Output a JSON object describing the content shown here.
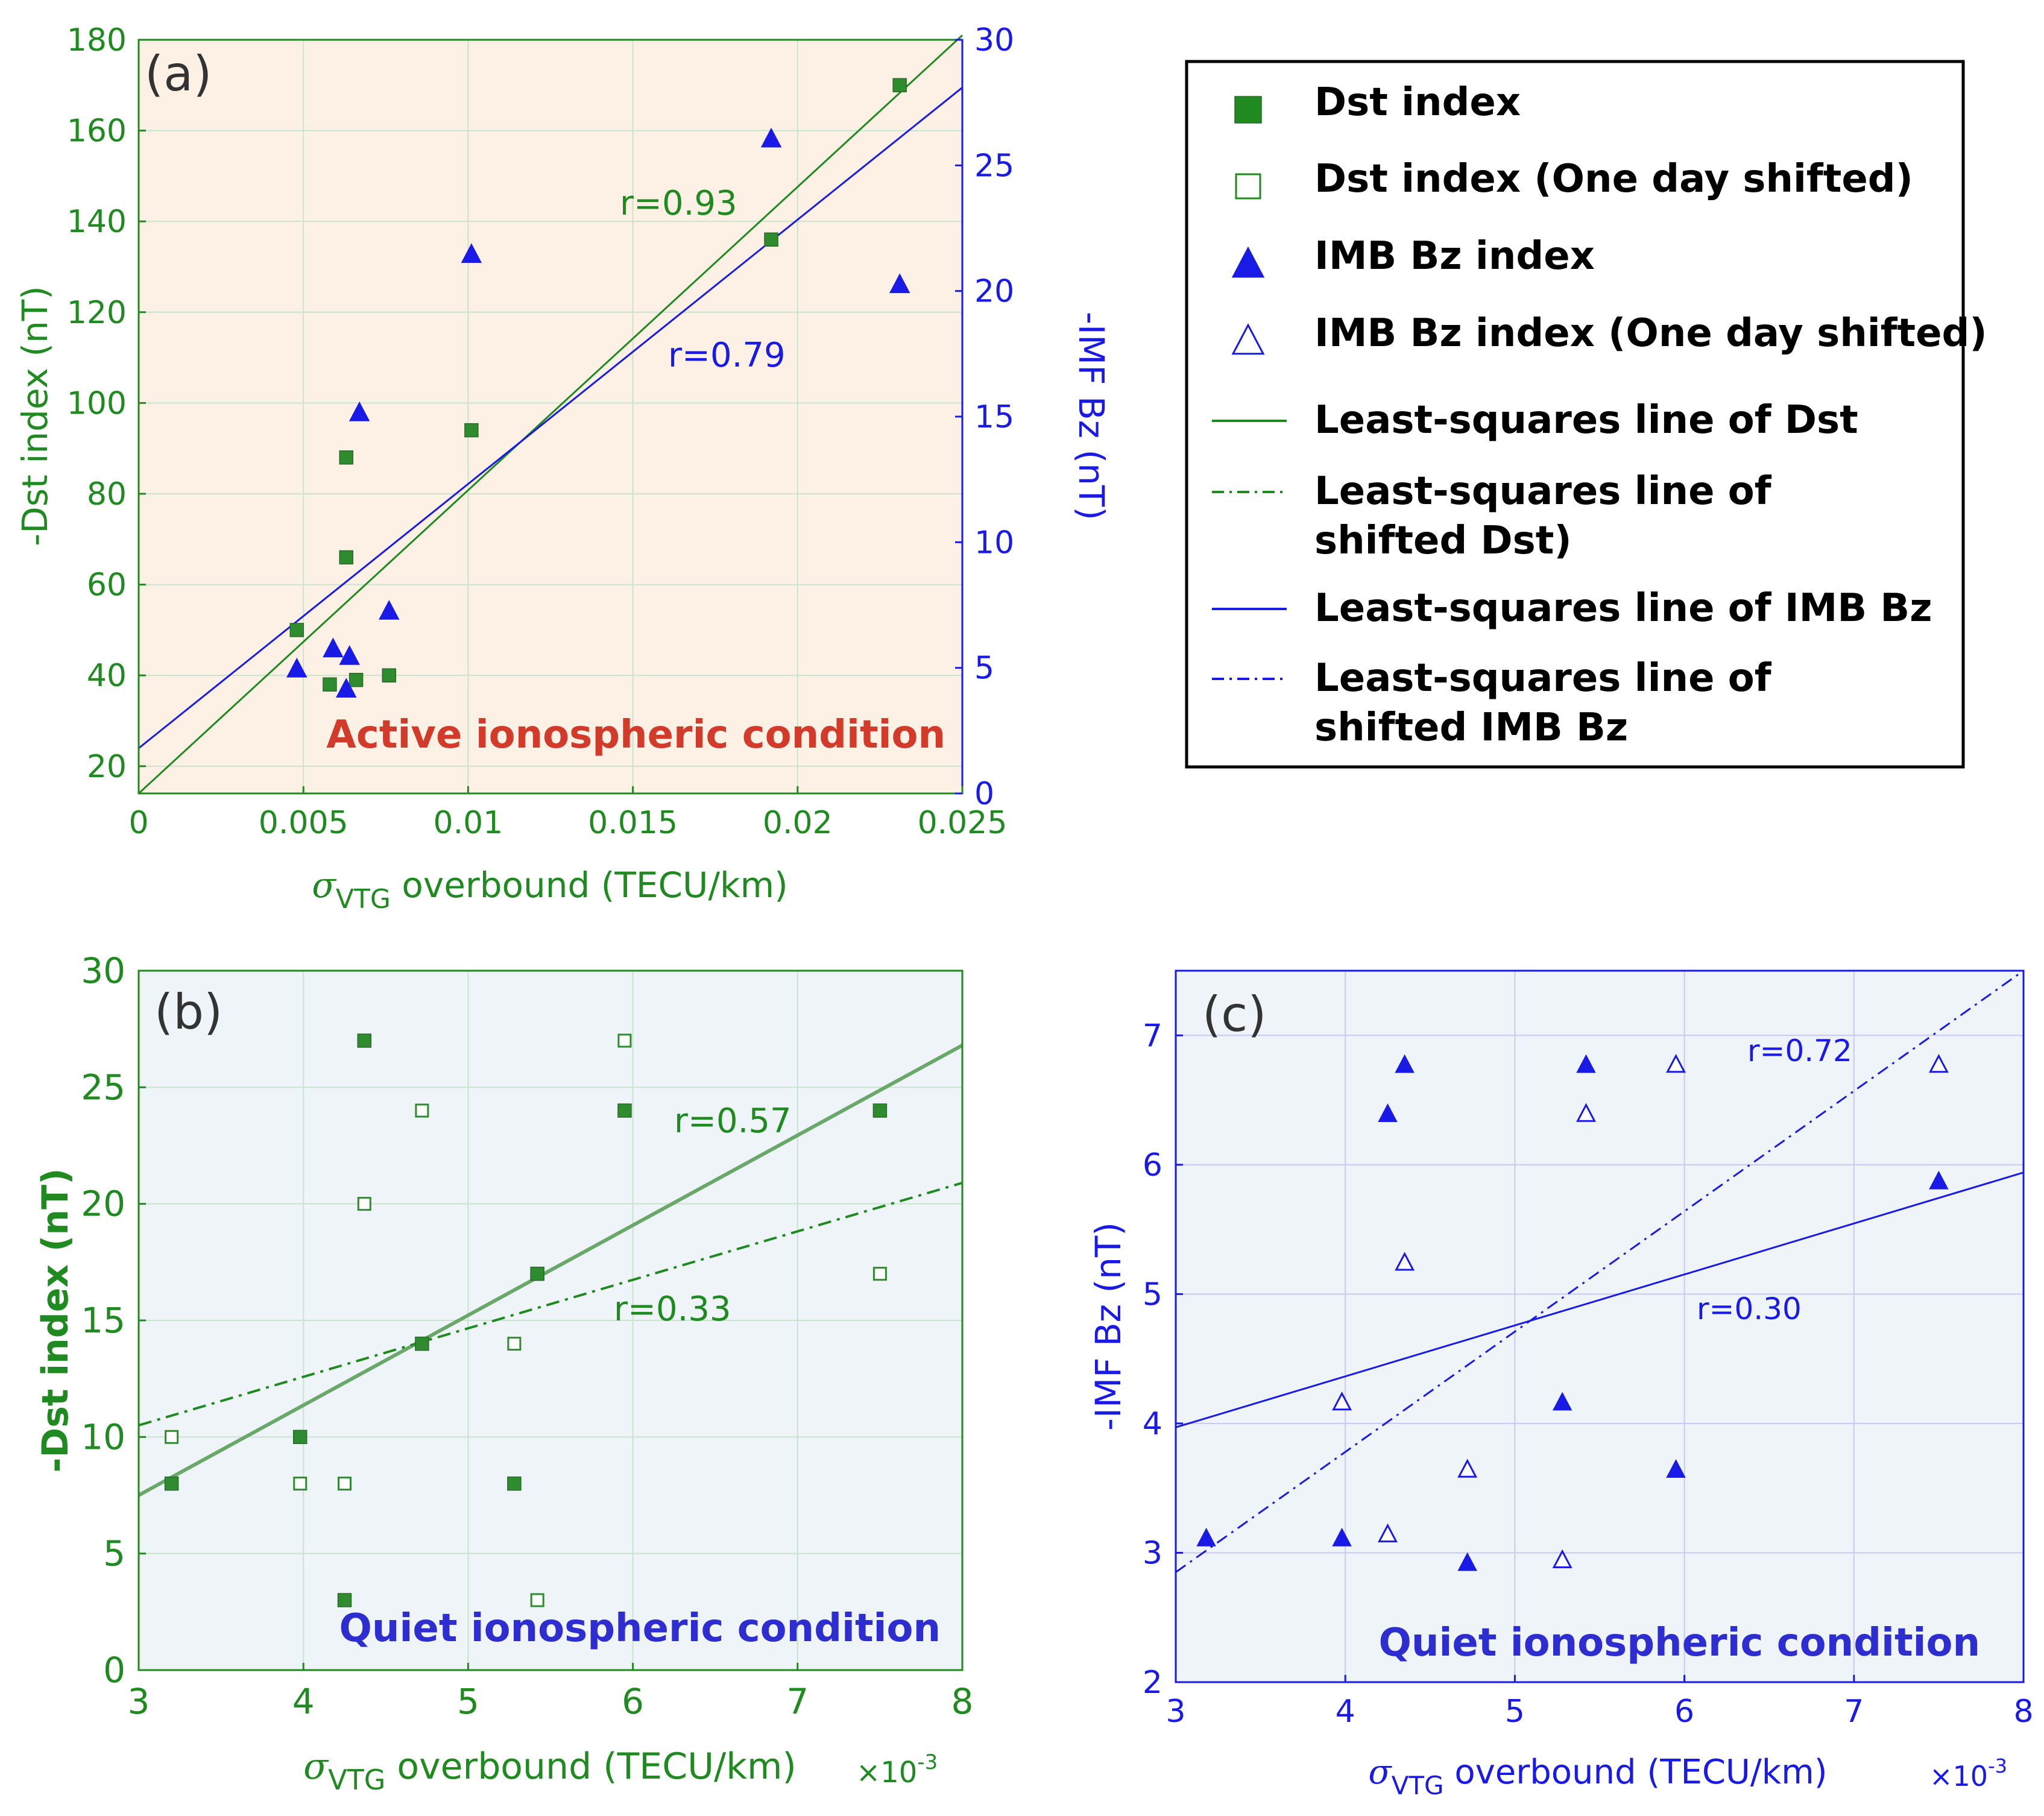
{
  "colors": {
    "green": "#1f8a1f",
    "green_marker": "#2e8b2e",
    "blue": "#1a1ae6",
    "red_title": "#d23a2a",
    "panel_a_bg": "#fdf1e6",
    "panel_bc_bg": "#eef4f8",
    "grid": "#c9e3cf",
    "grid_c": "#c8c8f2",
    "label_gray": "#333333"
  },
  "legend": {
    "items": [
      {
        "symbol": "filled-square",
        "label": "Dst index"
      },
      {
        "symbol": "open-square",
        "label": "Dst index (One day shifted)"
      },
      {
        "symbol": "filled-triangle",
        "label": "IMB Bz index"
      },
      {
        "symbol": "open-triangle",
        "label": "IMB Bz index (One day shifted)"
      },
      {
        "symbol": "solid-green",
        "label": "Least-squares line of Dst"
      },
      {
        "symbol": "dashdot-green",
        "label": "Least-squares line of\nshifted Dst)"
      },
      {
        "symbol": "solid-blue",
        "label": "Least-squares line of IMB Bz"
      },
      {
        "symbol": "dashdot-blue",
        "label": "Least-squares line of\nshifted IMB Bz"
      }
    ]
  },
  "chart_data": [
    {
      "panel": "a",
      "type": "scatter",
      "panel_label": "(a)",
      "condition_label": "Active ionospheric condition",
      "xlabel": "σVTG overbound (TECU/km)",
      "ylabel_left": "-Dst index (nT)",
      "ylabel_right": "-IMF Bz (nT)",
      "xlim": [
        0,
        0.025
      ],
      "ylim_left": [
        14,
        180
      ],
      "ylim_right": [
        0,
        30
      ],
      "x_ticks": [
        "0",
        "0.005",
        "0.01",
        "0.015",
        "0.02",
        "0.025"
      ],
      "y_ticks_left": [
        "20",
        "40",
        "60",
        "80",
        "100",
        "120",
        "140",
        "160",
        "180"
      ],
      "y_ticks_right": [
        "0",
        "5",
        "10",
        "15",
        "20",
        "25",
        "30"
      ],
      "grid": true,
      "series": [
        {
          "name": "Dst index",
          "marker": "filled-square",
          "points": [
            [
              0.0048,
              50
            ],
            [
              0.0058,
              38
            ],
            [
              0.0063,
              88
            ],
            [
              0.0063,
              66
            ],
            [
              0.0066,
              39
            ],
            [
              0.0076,
              40
            ],
            [
              0.0101,
              94
            ],
            [
              0.0192,
              136
            ],
            [
              0.0231,
              170
            ]
          ]
        },
        {
          "name": "IMB Bz index",
          "marker": "filled-triangle",
          "points": [
            [
              0.0048,
              5.0
            ],
            [
              0.0059,
              5.8
            ],
            [
              0.0063,
              4.2
            ],
            [
              0.0064,
              5.5
            ],
            [
              0.0067,
              15.2
            ],
            [
              0.0076,
              7.3
            ],
            [
              0.0101,
              21.5
            ],
            [
              0.0192,
              26.1
            ],
            [
              0.0231,
              20.3
            ]
          ]
        }
      ],
      "fits": [
        {
          "name": "Least-squares line of Dst",
          "axis": "left",
          "x": [
            0,
            0.025
          ],
          "y": [
            14,
            181
          ],
          "r_label": "r=0.93"
        },
        {
          "name": "Least-squares line of IMB Bz",
          "axis": "right",
          "x": [
            0,
            0.025
          ],
          "y": [
            1.8,
            28.1
          ],
          "r_label": "r=0.79"
        }
      ]
    },
    {
      "panel": "b",
      "type": "scatter",
      "panel_label": "(b)",
      "condition_label": "Quiet ionospheric condition",
      "xlabel": "σVTG overbound (TECU/km)",
      "x_multiplier": "×10-3",
      "ylabel": "-Dst index (nT)",
      "xlim": [
        3,
        8
      ],
      "ylim": [
        0,
        30
      ],
      "x_ticks": [
        "3",
        "4",
        "5",
        "6",
        "7",
        "8"
      ],
      "y_ticks": [
        "0",
        "5",
        "10",
        "15",
        "20",
        "25",
        "30"
      ],
      "grid": true,
      "series": [
        {
          "name": "Dst index",
          "marker": "filled-square",
          "points": [
            [
              3.2,
              8
            ],
            [
              3.98,
              10
            ],
            [
              4.25,
              3
            ],
            [
              4.37,
              27
            ],
            [
              4.72,
              14
            ],
            [
              5.28,
              8
            ],
            [
              5.42,
              17
            ],
            [
              5.95,
              24
            ],
            [
              7.5,
              24
            ]
          ]
        },
        {
          "name": "Dst index (One day shifted)",
          "marker": "open-square",
          "points": [
            [
              3.2,
              10
            ],
            [
              3.98,
              8
            ],
            [
              4.25,
              8
            ],
            [
              4.37,
              20
            ],
            [
              4.72,
              24
            ],
            [
              5.28,
              14
            ],
            [
              5.42,
              3
            ],
            [
              5.95,
              27
            ],
            [
              7.5,
              17
            ]
          ]
        }
      ],
      "fits": [
        {
          "name": "Least-squares line of Dst",
          "style": "solid",
          "x": [
            3,
            8
          ],
          "y": [
            7.5,
            26.8
          ],
          "r_label": "r=0.57"
        },
        {
          "name": "Least-squares line of shifted Dst",
          "style": "dashdot",
          "x": [
            3,
            8
          ],
          "y": [
            10.5,
            20.9
          ],
          "r_label": "r=0.33"
        }
      ]
    },
    {
      "panel": "c",
      "type": "scatter",
      "panel_label": "(c)",
      "condition_label": "Quiet ionospheric condition",
      "xlabel": "σVTG overbound (TECU/km)",
      "x_multiplier": "×10-3",
      "ylabel": "-IMF Bz (nT)",
      "xlim": [
        3,
        8
      ],
      "ylim": [
        2,
        7.5
      ],
      "x_ticks": [
        "3",
        "4",
        "5",
        "6",
        "7",
        "8"
      ],
      "y_ticks": [
        "2",
        "3",
        "4",
        "5",
        "6",
        "7"
      ],
      "grid": true,
      "series": [
        {
          "name": "IMB Bz index",
          "marker": "filled-triangle",
          "points": [
            [
              3.18,
              3.12
            ],
            [
              3.98,
              3.12
            ],
            [
              4.25,
              6.4
            ],
            [
              4.35,
              6.78
            ],
            [
              4.72,
              2.93
            ],
            [
              5.28,
              4.17
            ],
            [
              5.42,
              6.78
            ],
            [
              5.95,
              3.65
            ],
            [
              7.5,
              5.88
            ]
          ]
        },
        {
          "name": "IMB Bz index (One day shifted)",
          "marker": "open-triangle",
          "points": [
            [
              3.98,
              4.17
            ],
            [
              4.25,
              3.15
            ],
            [
              4.35,
              5.25
            ],
            [
              4.72,
              3.65
            ],
            [
              5.28,
              2.95
            ],
            [
              5.42,
              6.4
            ],
            [
              5.95,
              6.78
            ],
            [
              7.5,
              6.78
            ]
          ]
        }
      ],
      "fits": [
        {
          "name": "Least-squares line of IMB Bz",
          "style": "solid",
          "x": [
            3,
            8
          ],
          "y": [
            3.97,
            5.94
          ],
          "r_label": "r=0.30"
        },
        {
          "name": "Least-squares line of shifted IMB Bz",
          "style": "dashdot",
          "x": [
            3,
            8
          ],
          "y": [
            2.85,
            7.5
          ],
          "r_label": "r=0.72"
        }
      ]
    }
  ]
}
